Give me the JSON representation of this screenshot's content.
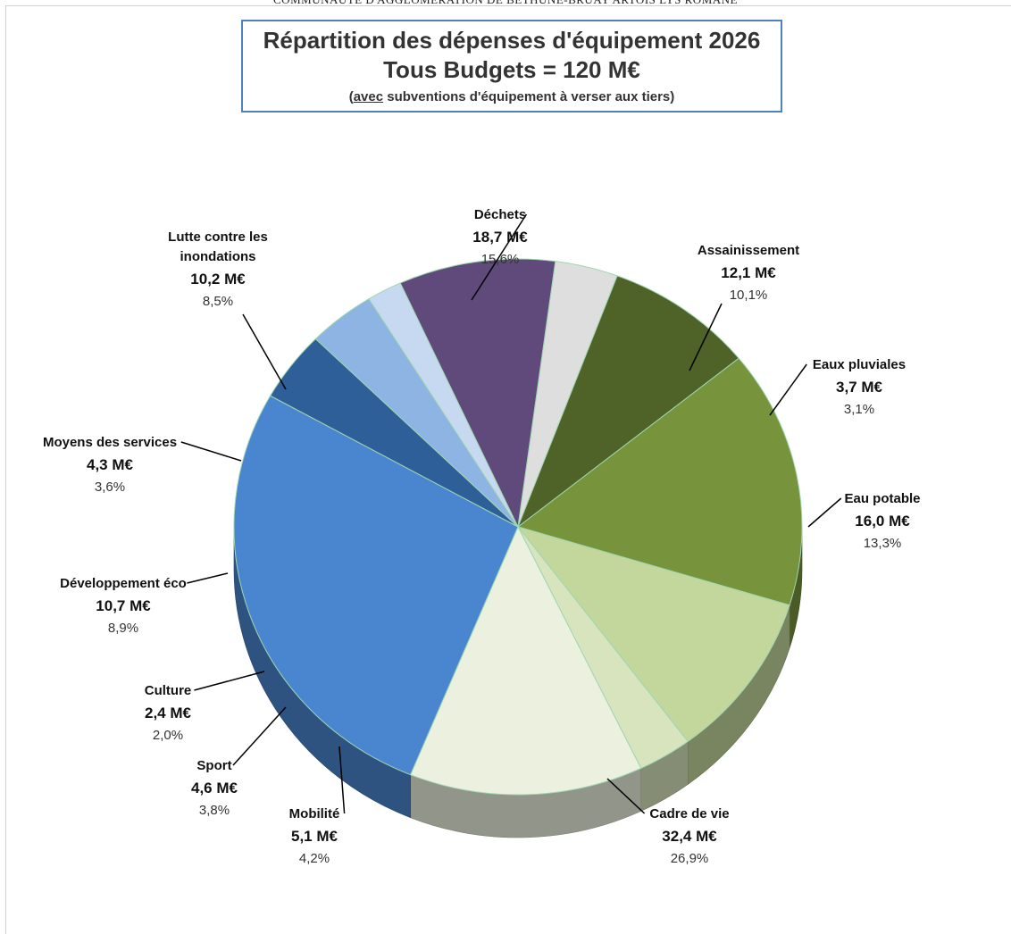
{
  "page_header": "COMMUNAUTE D'AGGLOMERATION DE BETHUNE-BRUAY ARTOIS LYS ROMANE",
  "title_box": {
    "line1": "Répartition des dépenses d'équipement 2026",
    "line2": "Tous Budgets = 120 M€",
    "line3_underlined": "avec",
    "line3_rest": " subventions d'équipement à verser aux tiers)",
    "line3_open": "("
  },
  "chart_data": {
    "type": "pie",
    "title": "Répartition des dépenses d'équipement 2026",
    "subtitle": "Tous Budgets = 120 M€",
    "unit": "M€",
    "slices": [
      {
        "name": "Déchets",
        "value": 18.7,
        "value_label": "18,7 M€",
        "pct_label": "15,6%",
        "color": "#77933c"
      },
      {
        "name": "Assainissement",
        "value": 12.1,
        "value_label": "12,1 M€",
        "pct_label": "10,1%",
        "color": "#c3d69b"
      },
      {
        "name": "Eaux pluviales",
        "value": 3.7,
        "value_label": "3,7 M€",
        "pct_label": "3,1%",
        "color": "#d7e4bd"
      },
      {
        "name": "Eau potable",
        "value": 16.0,
        "value_label": "16,0 M€",
        "pct_label": "13,3%",
        "color": "#ebf1de"
      },
      {
        "name": "Cadre de vie",
        "value": 32.4,
        "value_label": "32,4 M€",
        "pct_label": "26,9%",
        "color": "#4a86d0"
      },
      {
        "name": "Mobilité",
        "value": 5.1,
        "value_label": "5,1 M€",
        "pct_label": "4,2%",
        "color": "#2f5f99"
      },
      {
        "name": "Sport",
        "value": 4.6,
        "value_label": "4,6 M€",
        "pct_label": "3,8%",
        "color": "#8eb4e3"
      },
      {
        "name": "Culture",
        "value": 2.4,
        "value_label": "2,4 M€",
        "pct_label": "2,0%",
        "color": "#c6d9f1"
      },
      {
        "name": "Développement éco",
        "value": 10.7,
        "value_label": "10,7 M€",
        "pct_label": "8,9%",
        "color": "#604a7b"
      },
      {
        "name": "Moyens des services",
        "value": 4.3,
        "value_label": "4,3 M€",
        "pct_label": "3,6%",
        "color": "#dedede"
      },
      {
        "name": "Lutte contre les inondations",
        "name_lines": [
          "Lutte contre les",
          "inondations"
        ],
        "value": 10.2,
        "value_label": "10,2 M€",
        "pct_label": "8,5%",
        "color": "#4f6228"
      }
    ],
    "start_angle_deg": -39,
    "legend": "none",
    "style": "3d-exploded-perspective"
  }
}
